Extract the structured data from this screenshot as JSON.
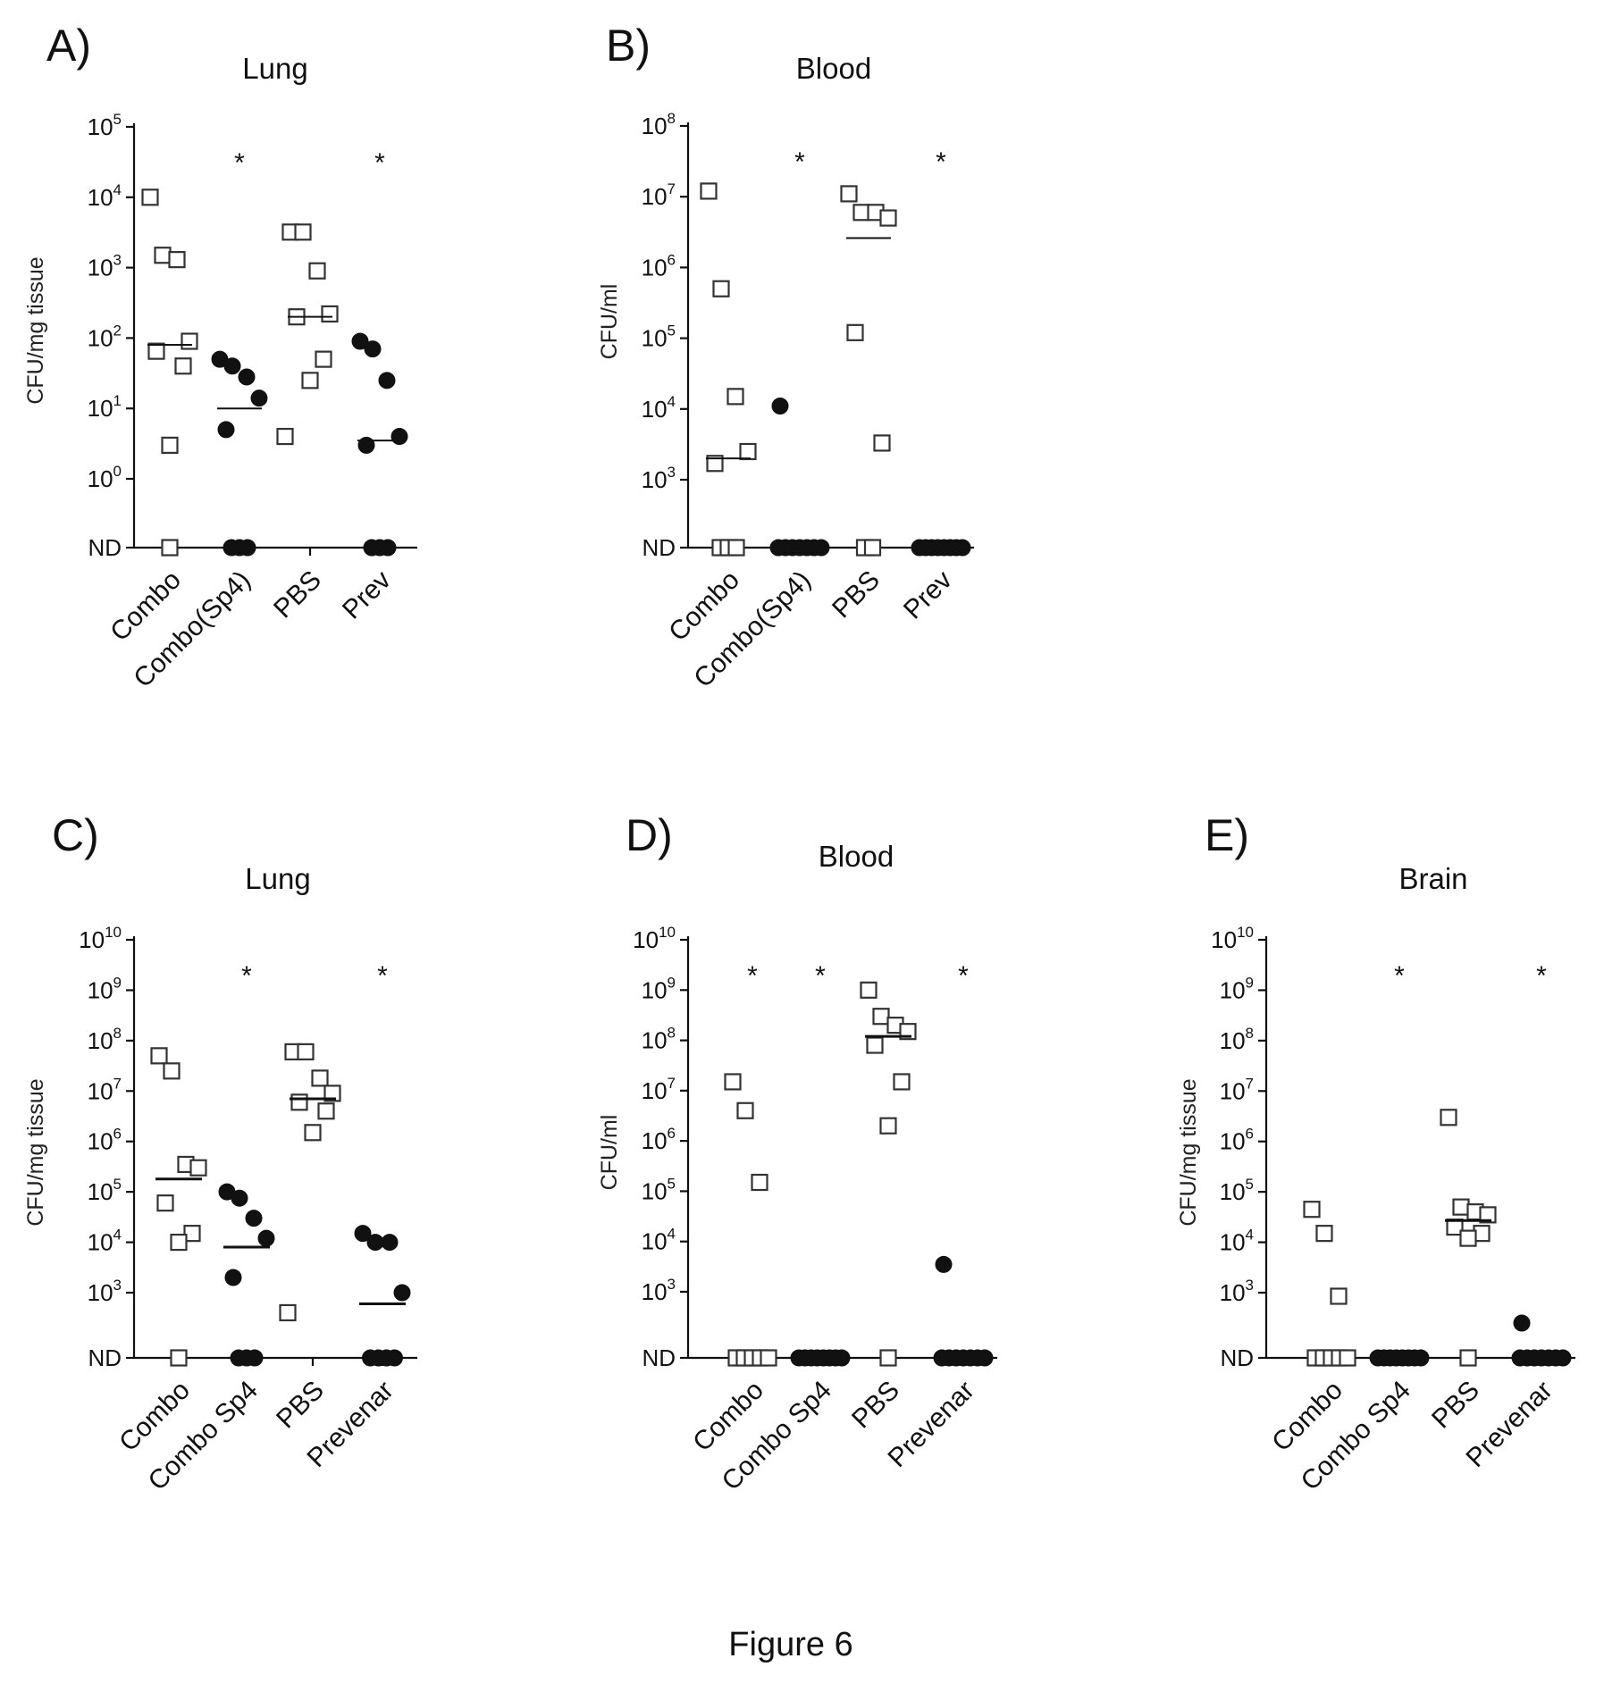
{
  "caption": "Figure 6",
  "chart_data": [
    {
      "panel": "A)",
      "type": "scatter",
      "title": "Lung",
      "ylabel": "CFU/mg tissue",
      "yscale": "log",
      "y_ticks": [
        {
          "base": "ND",
          "exp": ""
        },
        {
          "base": "10",
          "exp": "0"
        },
        {
          "base": "10",
          "exp": "1"
        },
        {
          "base": "10",
          "exp": "2"
        },
        {
          "base": "10",
          "exp": "3"
        },
        {
          "base": "10",
          "exp": "4"
        },
        {
          "base": "10",
          "exp": "5"
        }
      ],
      "ylim_exp": [
        0,
        5
      ],
      "categories": [
        "Combo",
        "Combo(Sp4)",
        "PBS",
        "Prev"
      ],
      "groups": [
        {
          "category": "Combo",
          "marker": "open-square",
          "median": 80,
          "significant": false,
          "values": [
            10000,
            1500,
            1300,
            90,
            65,
            40,
            3,
            "ND"
          ]
        },
        {
          "category": "Combo(Sp4)",
          "marker": "filled-circle",
          "median": 10,
          "significant": true,
          "values": [
            50,
            40,
            28,
            14,
            5,
            "ND",
            "ND",
            "ND"
          ]
        },
        {
          "category": "PBS",
          "marker": "open-square",
          "median": 200,
          "significant": false,
          "values": [
            3200,
            3200,
            900,
            220,
            200,
            50,
            25,
            4
          ]
        },
        {
          "category": "Prev",
          "marker": "filled-circle",
          "median": 3.5,
          "significant": true,
          "values": [
            90,
            70,
            25,
            4,
            3,
            "ND",
            "ND",
            "ND"
          ]
        }
      ]
    },
    {
      "panel": "B)",
      "type": "scatter",
      "title": "Blood",
      "ylabel": "CFU/ml",
      "yscale": "log",
      "y_ticks": [
        {
          "base": "ND",
          "exp": ""
        },
        {
          "base": "10",
          "exp": "3"
        },
        {
          "base": "10",
          "exp": "4"
        },
        {
          "base": "10",
          "exp": "5"
        },
        {
          "base": "10",
          "exp": "6"
        },
        {
          "base": "10",
          "exp": "7"
        },
        {
          "base": "10",
          "exp": "8"
        }
      ],
      "ylim_exp": [
        3,
        8
      ],
      "categories": [
        "Combo",
        "Combo(Sp4)",
        "PBS",
        "Prev"
      ],
      "groups": [
        {
          "category": "Combo",
          "marker": "open-square",
          "median": 2000,
          "significant": false,
          "values": [
            12000000,
            500000,
            15000,
            2500,
            1700,
            "ND",
            "ND",
            "ND"
          ]
        },
        {
          "category": "Combo(Sp4)",
          "marker": "filled-circle",
          "median": null,
          "significant": true,
          "values": [
            11000,
            "ND",
            "ND",
            "ND",
            "ND",
            "ND",
            "ND",
            "ND"
          ]
        },
        {
          "category": "PBS",
          "marker": "open-square",
          "median": 2600000,
          "significant": false,
          "values": [
            11000000,
            6000000,
            6000000,
            5000000,
            120000,
            3300,
            "ND",
            "ND"
          ]
        },
        {
          "category": "Prev",
          "marker": "filled-circle",
          "median": null,
          "significant": true,
          "values": [
            "ND",
            "ND",
            "ND",
            "ND",
            "ND",
            "ND",
            "ND",
            "ND"
          ]
        }
      ]
    },
    {
      "panel": "C)",
      "type": "scatter",
      "title": "Lung",
      "ylabel": "CFU/mg tissue",
      "yscale": "log",
      "y_ticks": [
        {
          "base": "ND",
          "exp": ""
        },
        {
          "base": "10",
          "exp": "3"
        },
        {
          "base": "10",
          "exp": "4"
        },
        {
          "base": "10",
          "exp": "5"
        },
        {
          "base": "10",
          "exp": "6"
        },
        {
          "base": "10",
          "exp": "7"
        },
        {
          "base": "10",
          "exp": "8"
        },
        {
          "base": "10",
          "exp": "9"
        },
        {
          "base": "10",
          "exp": "10"
        }
      ],
      "ylim_exp": [
        3,
        10
      ],
      "categories": [
        "Combo",
        "Combo Sp4",
        "PBS",
        "Prevenar"
      ],
      "groups": [
        {
          "category": "Combo",
          "marker": "open-square",
          "median": 180000,
          "significant": false,
          "values": [
            50000000,
            25000000,
            350000,
            300000,
            60000,
            15000,
            10000,
            "ND"
          ]
        },
        {
          "category": "Combo Sp4",
          "marker": "filled-circle",
          "median": 8000,
          "significant": true,
          "values": [
            100000,
            75000,
            30000,
            12000,
            2000,
            "ND",
            "ND",
            "ND"
          ]
        },
        {
          "category": "PBS",
          "marker": "open-square",
          "median": 7000000,
          "significant": false,
          "values": [
            60000000,
            60000000,
            18000000,
            9000000,
            6000000,
            4000000,
            1500000,
            400
          ]
        },
        {
          "category": "Prevenar",
          "marker": "filled-circle",
          "median": 600,
          "significant": true,
          "values": [
            15000,
            10000,
            10000,
            1000,
            "ND",
            "ND",
            "ND",
            "ND"
          ]
        }
      ]
    },
    {
      "panel": "D)",
      "type": "scatter",
      "title": "Blood",
      "ylabel": "CFU/ml",
      "yscale": "log",
      "y_ticks": [
        {
          "base": "ND",
          "exp": ""
        },
        {
          "base": "10",
          "exp": "3"
        },
        {
          "base": "10",
          "exp": "4"
        },
        {
          "base": "10",
          "exp": "5"
        },
        {
          "base": "10",
          "exp": "6"
        },
        {
          "base": "10",
          "exp": "7"
        },
        {
          "base": "10",
          "exp": "8"
        },
        {
          "base": "10",
          "exp": "9"
        },
        {
          "base": "10",
          "exp": "10"
        }
      ],
      "ylim_exp": [
        3,
        10
      ],
      "categories": [
        "Combo",
        "Combo Sp4",
        "PBS",
        "Prevenar"
      ],
      "groups": [
        {
          "category": "Combo",
          "marker": "open-square",
          "median": null,
          "significant": true,
          "values": [
            15000000,
            4000000,
            150000,
            "ND",
            "ND",
            "ND",
            "ND",
            "ND"
          ]
        },
        {
          "category": "Combo Sp4",
          "marker": "filled-circle",
          "median": null,
          "significant": true,
          "values": [
            "ND",
            "ND",
            "ND",
            "ND",
            "ND",
            "ND",
            "ND",
            "ND"
          ]
        },
        {
          "category": "PBS",
          "marker": "open-square",
          "median": 120000000,
          "significant": false,
          "values": [
            1000000000,
            300000000,
            200000000,
            150000000,
            80000000,
            15000000,
            2000000,
            "ND"
          ]
        },
        {
          "category": "Prevenar",
          "marker": "filled-circle",
          "median": null,
          "significant": true,
          "values": [
            3500,
            "ND",
            "ND",
            "ND",
            "ND",
            "ND",
            "ND",
            "ND"
          ]
        }
      ]
    },
    {
      "panel": "E)",
      "type": "scatter",
      "title": "Brain",
      "ylabel": "CFU/mg tissue",
      "yscale": "log",
      "y_ticks": [
        {
          "base": "ND",
          "exp": ""
        },
        {
          "base": "10",
          "exp": "3"
        },
        {
          "base": "10",
          "exp": "4"
        },
        {
          "base": "10",
          "exp": "5"
        },
        {
          "base": "10",
          "exp": "6"
        },
        {
          "base": "10",
          "exp": "7"
        },
        {
          "base": "10",
          "exp": "8"
        },
        {
          "base": "10",
          "exp": "9"
        },
        {
          "base": "10",
          "exp": "10"
        }
      ],
      "ylim_exp": [
        3,
        10
      ],
      "categories": [
        "Combo",
        "Combo Sp4",
        "PBS",
        "Prevenar"
      ],
      "groups": [
        {
          "category": "Combo",
          "marker": "open-square",
          "median": null,
          "significant": false,
          "values": [
            45000,
            15000,
            850,
            "ND",
            "ND",
            "ND",
            "ND",
            "ND"
          ]
        },
        {
          "category": "Combo Sp4",
          "marker": "filled-circle",
          "median": null,
          "significant": true,
          "values": [
            "ND",
            "ND",
            "ND",
            "ND",
            "ND",
            "ND",
            "ND",
            "ND"
          ]
        },
        {
          "category": "PBS",
          "marker": "open-square",
          "median": 27000,
          "significant": false,
          "values": [
            3000000,
            50000,
            40000,
            35000,
            20000,
            15000,
            12000,
            "ND"
          ]
        },
        {
          "category": "Prevenar",
          "marker": "filled-circle",
          "median": null,
          "significant": true,
          "values": [
            250,
            "ND",
            "ND",
            "ND",
            "ND",
            "ND",
            "ND",
            "ND"
          ]
        }
      ]
    }
  ]
}
